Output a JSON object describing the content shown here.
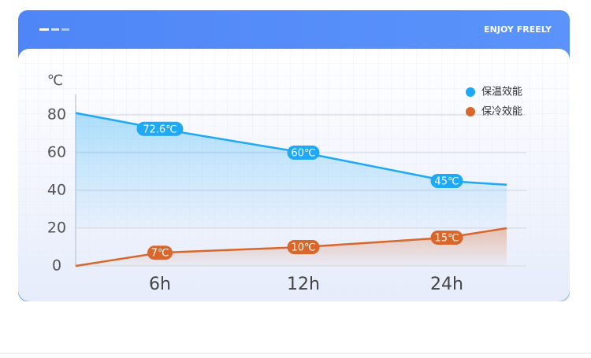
{
  "header_text": "ENJOY FREELY",
  "chart_data": {
    "type": "area-line",
    "y_unit": "℃",
    "categories": [
      null,
      "6h",
      "12h",
      "24h",
      null
    ],
    "series": [
      {
        "name": "保温效能",
        "color": "#1ea8f5",
        "values": [
          81,
          72.6,
          60,
          45,
          43
        ],
        "value_labels": [
          null,
          "72.6℃",
          "60℃",
          "45℃",
          null
        ]
      },
      {
        "name": "保冷效能",
        "color": "#d9662a",
        "values": [
          0,
          7,
          10,
          15,
          20
        ],
        "value_labels": [
          null,
          "7℃",
          "10℃",
          "15℃",
          null
        ]
      }
    ],
    "ylim": [
      0,
      90
    ],
    "yticks": [
      0,
      20,
      40,
      60,
      80
    ],
    "grid": true,
    "legend": "upper right"
  }
}
